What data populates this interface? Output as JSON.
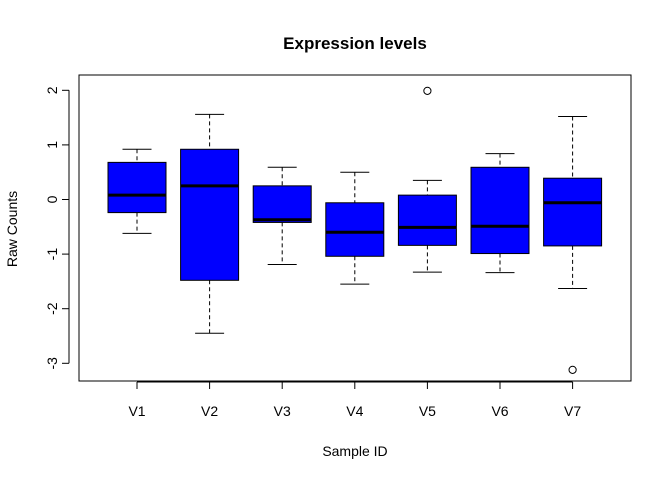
{
  "chart_data": {
    "type": "boxplot",
    "title": "Expression levels",
    "xlabel": "Sample ID",
    "ylabel": "Raw Counts",
    "ylim": [
      -3.3,
      2.2
    ],
    "yticks": [
      -3,
      -2,
      -1,
      0,
      1,
      2
    ],
    "ytick_labels": [
      "-3",
      "-2",
      "-1",
      "0",
      "1",
      "2"
    ],
    "box_color": "#0000ff",
    "grid": false,
    "categories": [
      "V1",
      "V2",
      "V3",
      "V4",
      "V5",
      "V6",
      "V7"
    ],
    "boxes": [
      {
        "name": "V1",
        "whisker_low": -0.62,
        "q1": -0.24,
        "median": 0.08,
        "q3": 0.68,
        "whisker_high": 0.92,
        "outliers": []
      },
      {
        "name": "V2",
        "whisker_low": -2.45,
        "q1": -1.48,
        "median": 0.25,
        "q3": 0.92,
        "whisker_high": 1.56,
        "outliers": []
      },
      {
        "name": "V3",
        "whisker_low": -1.19,
        "q1": -0.42,
        "median": -0.37,
        "q3": 0.25,
        "whisker_high": 0.59,
        "outliers": []
      },
      {
        "name": "V4",
        "whisker_low": -1.55,
        "q1": -1.04,
        "median": -0.6,
        "q3": -0.06,
        "whisker_high": 0.5,
        "outliers": []
      },
      {
        "name": "V5",
        "whisker_low": -1.33,
        "q1": -0.84,
        "median": -0.51,
        "q3": 0.08,
        "whisker_high": 0.35,
        "outliers": [
          1.99
        ]
      },
      {
        "name": "V6",
        "whisker_low": -1.34,
        "q1": -0.99,
        "median": -0.49,
        "q3": 0.59,
        "whisker_high": 0.84,
        "outliers": []
      },
      {
        "name": "V7",
        "whisker_low": -1.63,
        "q1": -0.85,
        "median": -0.06,
        "q3": 0.39,
        "whisker_high": 1.52,
        "outliers": [
          -3.12
        ]
      }
    ]
  }
}
